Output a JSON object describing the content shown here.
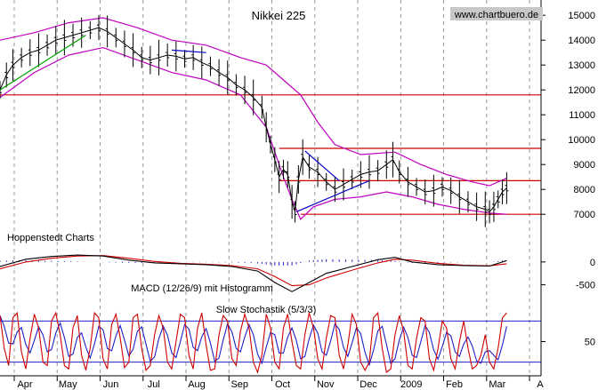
{
  "chart_data": {
    "type": "line",
    "title": "Nikkei 225",
    "watermark": "www.chartbuero.de",
    "source_label": "Hoppenstedt Charts",
    "x_months": [
      "Apr",
      "May",
      "Jun",
      "Jul",
      "Aug",
      "Sep",
      "Oct",
      "Nov",
      "Dec",
      "2009",
      "Feb",
      "Mar",
      "A"
    ],
    "price_panel": {
      "y_ticks": [
        "15000",
        "14000",
        "13000",
        "12000",
        "11000",
        "10000",
        "9000",
        "8000",
        "7000"
      ],
      "ylim": [
        6400,
        15400
      ],
      "horizontal_levels": [
        11800,
        9650,
        8350,
        7000
      ],
      "close": [
        {
          "x": 0,
          "y": 12000
        },
        {
          "x": 1.5,
          "y": 12600
        },
        {
          "x": 3,
          "y": 13000
        },
        {
          "x": 5,
          "y": 13300
        },
        {
          "x": 7,
          "y": 13500
        },
        {
          "x": 9,
          "y": 13600
        },
        {
          "x": 11,
          "y": 13800
        },
        {
          "x": 13,
          "y": 14000
        },
        {
          "x": 15,
          "y": 14100
        },
        {
          "x": 17,
          "y": 14200
        },
        {
          "x": 19,
          "y": 14300
        },
        {
          "x": 21,
          "y": 14400
        },
        {
          "x": 23,
          "y": 14500
        },
        {
          "x": 25,
          "y": 14350
        },
        {
          "x": 27,
          "y": 14100
        },
        {
          "x": 29,
          "y": 13850
        },
        {
          "x": 31,
          "y": 13600
        },
        {
          "x": 33,
          "y": 13300
        },
        {
          "x": 35,
          "y": 13200
        },
        {
          "x": 37,
          "y": 13300
        },
        {
          "x": 39,
          "y": 13400
        },
        {
          "x": 41,
          "y": 13350
        },
        {
          "x": 43,
          "y": 13250
        },
        {
          "x": 45,
          "y": 13300
        },
        {
          "x": 47,
          "y": 13100
        },
        {
          "x": 49,
          "y": 12950
        },
        {
          "x": 51,
          "y": 12700
        },
        {
          "x": 53,
          "y": 12500
        },
        {
          "x": 55,
          "y": 12200
        },
        {
          "x": 57,
          "y": 12000
        },
        {
          "x": 59,
          "y": 11700
        },
        {
          "x": 61,
          "y": 11300
        },
        {
          "x": 62,
          "y": 10500
        },
        {
          "x": 63,
          "y": 9800
        },
        {
          "x": 64,
          "y": 9200
        },
        {
          "x": 65,
          "y": 8500
        },
        {
          "x": 66,
          "y": 8800
        },
        {
          "x": 67,
          "y": 8600
        },
        {
          "x": 68,
          "y": 7500
        },
        {
          "x": 68.7,
          "y": 7100
        },
        {
          "x": 69.5,
          "y": 8400
        },
        {
          "x": 70.5,
          "y": 9300
        },
        {
          "x": 72,
          "y": 8900
        },
        {
          "x": 74,
          "y": 8700
        },
        {
          "x": 76,
          "y": 8300
        },
        {
          "x": 78,
          "y": 8000
        },
        {
          "x": 80,
          "y": 8200
        },
        {
          "x": 82,
          "y": 8400
        },
        {
          "x": 84,
          "y": 8600
        },
        {
          "x": 86,
          "y": 8700
        },
        {
          "x": 88,
          "y": 8750
        },
        {
          "x": 90,
          "y": 9000
        },
        {
          "x": 91.5,
          "y": 9200
        },
        {
          "x": 93,
          "y": 8700
        },
        {
          "x": 95,
          "y": 8300
        },
        {
          "x": 97,
          "y": 8100
        },
        {
          "x": 99,
          "y": 7900
        },
        {
          "x": 101,
          "y": 7950
        },
        {
          "x": 103,
          "y": 8100
        },
        {
          "x": 105,
          "y": 7950
        },
        {
          "x": 107,
          "y": 7700
        },
        {
          "x": 109,
          "y": 7500
        },
        {
          "x": 111,
          "y": 7300
        },
        {
          "x": 113,
          "y": 7200
        },
        {
          "x": 114,
          "y": 7100
        },
        {
          "x": 115,
          "y": 7300
        },
        {
          "x": 116,
          "y": 7600
        },
        {
          "x": 117,
          "y": 7900
        },
        {
          "x": 118,
          "y": 8050
        }
      ],
      "upper_band": [
        {
          "x": 0,
          "y": 14000
        },
        {
          "x": 8,
          "y": 14300
        },
        {
          "x": 16,
          "y": 14700
        },
        {
          "x": 24,
          "y": 14900
        },
        {
          "x": 32,
          "y": 14500
        },
        {
          "x": 40,
          "y": 14000
        },
        {
          "x": 48,
          "y": 13800
        },
        {
          "x": 56,
          "y": 13300
        },
        {
          "x": 62,
          "y": 13000
        },
        {
          "x": 66,
          "y": 12400
        },
        {
          "x": 70,
          "y": 11800
        },
        {
          "x": 74,
          "y": 10700
        },
        {
          "x": 78,
          "y": 9800
        },
        {
          "x": 84,
          "y": 9400
        },
        {
          "x": 92,
          "y": 9500
        },
        {
          "x": 98,
          "y": 9000
        },
        {
          "x": 104,
          "y": 8600
        },
        {
          "x": 110,
          "y": 8300
        },
        {
          "x": 114,
          "y": 8150
        },
        {
          "x": 118,
          "y": 8450
        }
      ],
      "lower_band": [
        {
          "x": 0,
          "y": 11700
        },
        {
          "x": 8,
          "y": 12700
        },
        {
          "x": 16,
          "y": 13400
        },
        {
          "x": 24,
          "y": 13700
        },
        {
          "x": 32,
          "y": 13200
        },
        {
          "x": 40,
          "y": 12700
        },
        {
          "x": 48,
          "y": 12400
        },
        {
          "x": 56,
          "y": 11800
        },
        {
          "x": 62,
          "y": 10500
        },
        {
          "x": 66,
          "y": 8500
        },
        {
          "x": 68,
          "y": 7600
        },
        {
          "x": 70,
          "y": 6800
        },
        {
          "x": 73,
          "y": 7300
        },
        {
          "x": 78,
          "y": 7600
        },
        {
          "x": 84,
          "y": 7700
        },
        {
          "x": 90,
          "y": 7900
        },
        {
          "x": 96,
          "y": 7700
        },
        {
          "x": 102,
          "y": 7400
        },
        {
          "x": 108,
          "y": 7200
        },
        {
          "x": 114,
          "y": 7050
        },
        {
          "x": 118,
          "y": 7000
        }
      ],
      "trendlines": [
        {
          "color": "#00a000",
          "from": {
            "x": 0,
            "y": 12000
          },
          "to": {
            "x": 20,
            "y": 14200
          }
        },
        {
          "color": "#0000c8",
          "from": {
            "x": 69,
            "y": 7100
          },
          "to": {
            "x": 86,
            "y": 8350
          }
        },
        {
          "color": "#0000c8",
          "from": {
            "x": 71,
            "y": 9550
          },
          "to": {
            "x": 79,
            "y": 8350
          }
        },
        {
          "color": "#0000c8",
          "from": {
            "x": 40,
            "y": 13600
          },
          "to": {
            "x": 48,
            "y": 13500
          }
        }
      ]
    },
    "macd_panel": {
      "label": "MACD (12/26/9) mit Histogramm",
      "y_ticks": [
        "0",
        "-500"
      ],
      "ylim": [
        -800,
        250
      ],
      "macd": [
        {
          "x": 0,
          "y": -100
        },
        {
          "x": 6,
          "y": 60
        },
        {
          "x": 12,
          "y": 120
        },
        {
          "x": 18,
          "y": 150
        },
        {
          "x": 24,
          "y": 130
        },
        {
          "x": 30,
          "y": 40
        },
        {
          "x": 36,
          "y": -20
        },
        {
          "x": 42,
          "y": -40
        },
        {
          "x": 48,
          "y": -60
        },
        {
          "x": 54,
          "y": -100
        },
        {
          "x": 60,
          "y": -200
        },
        {
          "x": 64,
          "y": -450
        },
        {
          "x": 68,
          "y": -650
        },
        {
          "x": 72,
          "y": -450
        },
        {
          "x": 76,
          "y": -250
        },
        {
          "x": 82,
          "y": -100
        },
        {
          "x": 88,
          "y": 50
        },
        {
          "x": 92,
          "y": 100
        },
        {
          "x": 96,
          "y": 0
        },
        {
          "x": 102,
          "y": -60
        },
        {
          "x": 108,
          "y": -80
        },
        {
          "x": 114,
          "y": -90
        },
        {
          "x": 118,
          "y": 30
        }
      ],
      "signal": [
        {
          "x": 0,
          "y": -150
        },
        {
          "x": 6,
          "y": 0
        },
        {
          "x": 12,
          "y": 80
        },
        {
          "x": 18,
          "y": 130
        },
        {
          "x": 24,
          "y": 140
        },
        {
          "x": 30,
          "y": 80
        },
        {
          "x": 36,
          "y": 10
        },
        {
          "x": 42,
          "y": -30
        },
        {
          "x": 48,
          "y": -50
        },
        {
          "x": 54,
          "y": -80
        },
        {
          "x": 60,
          "y": -150
        },
        {
          "x": 64,
          "y": -320
        },
        {
          "x": 68,
          "y": -520
        },
        {
          "x": 72,
          "y": -500
        },
        {
          "x": 76,
          "y": -350
        },
        {
          "x": 82,
          "y": -180
        },
        {
          "x": 88,
          "y": -20
        },
        {
          "x": 92,
          "y": 60
        },
        {
          "x": 96,
          "y": 40
        },
        {
          "x": 102,
          "y": -30
        },
        {
          "x": 108,
          "y": -70
        },
        {
          "x": 114,
          "y": -85
        },
        {
          "x": 118,
          "y": -40
        }
      ]
    },
    "stoch_panel": {
      "label": "Slow Stochastik (5/3/3)",
      "y_ticks": [
        "50"
      ],
      "ylim": [
        0,
        100
      ],
      "levels": [
        80,
        20
      ],
      "k": [
        88,
        40,
        15,
        85,
        92,
        35,
        10,
        55,
        90,
        70,
        20,
        15,
        80,
        92,
        60,
        15,
        10,
        70,
        88,
        30,
        8,
        40,
        92,
        85,
        25,
        10,
        75,
        90,
        55,
        12,
        20,
        85,
        90,
        40,
        8,
        15,
        60,
        88,
        70,
        20,
        10,
        50,
        90,
        85,
        30,
        10,
        70,
        92,
        45,
        8,
        10,
        60,
        88,
        80,
        25,
        15,
        65,
        90,
        70,
        20,
        5,
        30,
        90,
        70,
        20,
        10,
        70,
        90,
        50,
        15,
        10,
        60,
        92,
        70,
        25,
        10,
        55,
        88,
        85,
        30,
        10,
        45,
        90,
        75,
        20,
        8,
        20,
        85,
        92,
        40,
        5,
        10,
        60,
        88,
        65,
        15,
        10,
        55,
        85,
        80,
        25,
        8,
        40,
        80,
        70,
        25,
        10,
        50,
        80,
        40,
        10,
        15,
        30,
        60,
        20,
        10,
        40,
        85,
        92
      ]
    }
  }
}
